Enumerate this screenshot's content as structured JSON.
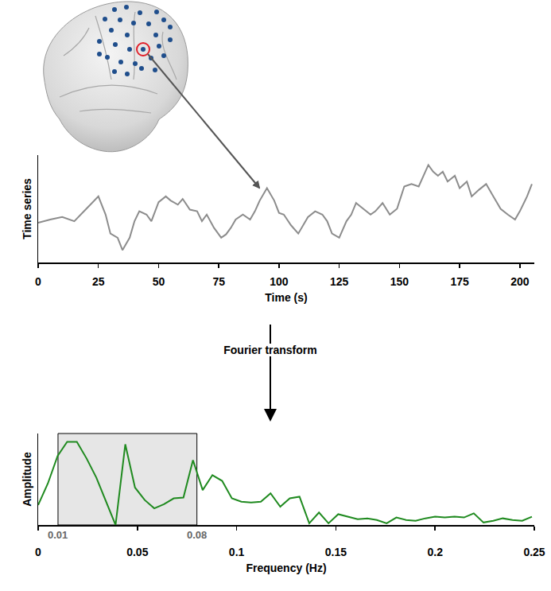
{
  "chart_data": [
    {
      "type": "line",
      "x_label": "Time (s)",
      "y_label": "Time series",
      "color": "#8c8c8c",
      "x": [
        0,
        5,
        10,
        15,
        20,
        25,
        28,
        30,
        33,
        35,
        38,
        40,
        42,
        45,
        47,
        50,
        53,
        55,
        58,
        60,
        63,
        66,
        68,
        70,
        73,
        76,
        78,
        80,
        82,
        85,
        88,
        90,
        92,
        95,
        98,
        100,
        102,
        105,
        108,
        110,
        112,
        115,
        118,
        120,
        122,
        125,
        128,
        130,
        132,
        135,
        138,
        140,
        143,
        146,
        149,
        152,
        155,
        158,
        162,
        164,
        166,
        168,
        170,
        173,
        175,
        178,
        180,
        183,
        186,
        189,
        192,
        195,
        198,
        200,
        203,
        205
      ],
      "values": [
        4.8,
        5.2,
        5.5,
        5.0,
        6.5,
        8.0,
        5.8,
        3.5,
        3.0,
        1.5,
        3.0,
        5.0,
        6.2,
        5.8,
        5.0,
        7.3,
        8.0,
        7.5,
        7.0,
        7.7,
        6.4,
        6.2,
        5.0,
        5.8,
        4.2,
        3.0,
        3.4,
        4.2,
        5.2,
        5.8,
        5.2,
        6.2,
        7.5,
        9.0,
        7.5,
        6.0,
        5.8,
        4.5,
        3.5,
        4.5,
        5.5,
        6.2,
        5.8,
        5.0,
        3.5,
        3.0,
        5.0,
        5.8,
        7.2,
        6.5,
        5.8,
        6.2,
        7.2,
        5.8,
        6.5,
        9.2,
        9.5,
        9.2,
        11.8,
        11.0,
        10.5,
        11.0,
        9.8,
        10.5,
        9.0,
        9.8,
        8.0,
        8.8,
        9.5,
        8.0,
        6.5,
        5.8,
        5.2,
        6.2,
        8.0,
        9.5
      ],
      "xlim": [
        0,
        206
      ],
      "xticks": [
        0,
        25,
        50,
        75,
        100,
        125,
        150,
        175,
        200
      ],
      "ylim": [
        0,
        13
      ],
      "tick_labels": "x"
    },
    {
      "type": "line",
      "annotation": "Fourier transform",
      "x_label": "Frequency (Hz)",
      "y_label": "Amplitude",
      "color": "#1f8a1f",
      "x": [
        0,
        0.0049,
        0.0098,
        0.0146,
        0.0195,
        0.0244,
        0.0293,
        0.0341,
        0.039,
        0.0439,
        0.0488,
        0.0537,
        0.0585,
        0.0634,
        0.0683,
        0.0732,
        0.078,
        0.0829,
        0.0878,
        0.0927,
        0.0976,
        0.1024,
        0.1073,
        0.1122,
        0.1171,
        0.122,
        0.1268,
        0.1317,
        0.1366,
        0.1415,
        0.1463,
        0.1512,
        0.1561,
        0.161,
        0.1659,
        0.1707,
        0.1756,
        0.1805,
        0.1854,
        0.1902,
        0.1951,
        0.2,
        0.2049,
        0.2098,
        0.2146,
        0.2195,
        0.2244,
        0.2293,
        0.2341,
        0.239,
        0.2439,
        0.2488
      ],
      "values": [
        0.24,
        0.5,
        0.83,
        1.0,
        1.0,
        0.8,
        0.57,
        0.28,
        0.0,
        0.97,
        0.45,
        0.3,
        0.2,
        0.25,
        0.32,
        0.33,
        0.78,
        0.42,
        0.6,
        0.53,
        0.32,
        0.28,
        0.27,
        0.28,
        0.38,
        0.22,
        0.32,
        0.34,
        0.02,
        0.15,
        0.02,
        0.13,
        0.1,
        0.07,
        0.08,
        0.06,
        0.02,
        0.09,
        0.06,
        0.05,
        0.08,
        0.1,
        0.09,
        0.1,
        0.09,
        0.14,
        0.03,
        0.05,
        0.08,
        0.06,
        0.05,
        0.1
      ],
      "xlim": [
        0,
        0.25
      ],
      "xticks": [
        0,
        0.05,
        0.1,
        0.15,
        0.2,
        0.25
      ],
      "ylim": [
        0,
        1.1
      ],
      "band": [
        0.01,
        0.08
      ],
      "tick_labels": "x"
    }
  ]
}
